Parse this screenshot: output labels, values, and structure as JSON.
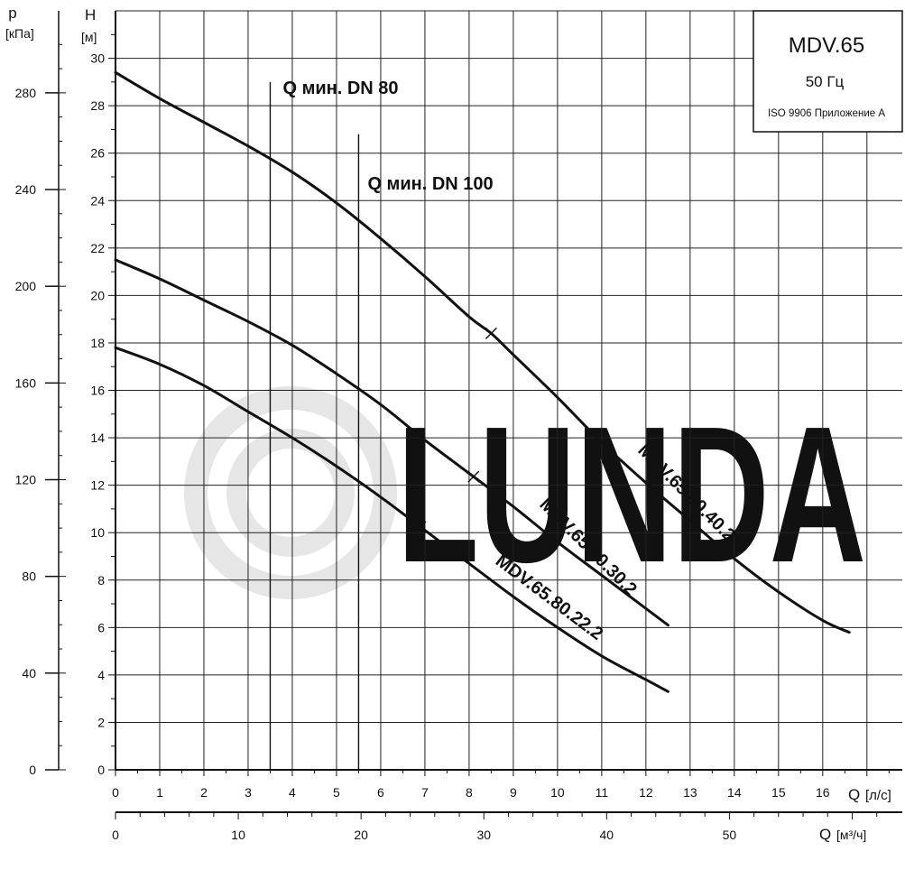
{
  "chart_data": {
    "type": "line",
    "title": "MDV.65",
    "subtitle": "50 Гц",
    "note": "ISO 9906 Приложение A",
    "x": {
      "label": "Q",
      "unit": "[л/с]",
      "range": [
        0,
        17.8
      ],
      "ticks": [
        "0",
        "1",
        "2",
        "3",
        "4",
        "5",
        "6",
        "7",
        "8",
        "9",
        "10",
        "11",
        "12",
        "13",
        "14",
        "15",
        "16"
      ]
    },
    "x2": {
      "label": "Q",
      "unit": "[м³/ч]",
      "ticks": [
        "0",
        "10",
        "20",
        "30",
        "40",
        "50"
      ],
      "tick_values": [
        0,
        10,
        20,
        30,
        40,
        50
      ]
    },
    "y": {
      "label": "H",
      "unit": "[м]",
      "range": [
        0,
        32
      ],
      "ticks": [
        "0",
        "2",
        "4",
        "6",
        "8",
        "10",
        "12",
        "14",
        "16",
        "18",
        "20",
        "22",
        "24",
        "26",
        "28",
        "30"
      ]
    },
    "y2": {
      "label": "p",
      "unit": "[кПа]",
      "ticks": [
        "0",
        "40",
        "80",
        "120",
        "160",
        "200",
        "240",
        "280"
      ],
      "tick_values": [
        0,
        40,
        80,
        120,
        160,
        200,
        240,
        280
      ]
    },
    "grid": true,
    "series": [
      {
        "name": "MDV.65.80.40.2",
        "x": [
          0,
          1,
          2,
          3,
          4,
          5,
          6,
          7,
          8,
          8.5,
          9,
          10,
          11,
          12,
          13,
          14,
          15,
          16,
          16.6
        ],
        "y": [
          29.4,
          28.3,
          27.3,
          26.3,
          25.2,
          23.9,
          22.4,
          20.8,
          19.1,
          18.4,
          17.5,
          15.7,
          13.8,
          12.1,
          10.5,
          8.9,
          7.5,
          6.3,
          5.8
        ],
        "marker_x": 8.5
      },
      {
        "name": "MDV.65.80.30.2",
        "x": [
          0,
          1,
          2,
          3,
          4,
          5,
          6,
          7,
          8,
          9,
          10,
          11,
          12,
          12.5
        ],
        "y": [
          21.5,
          20.7,
          19.8,
          18.9,
          17.9,
          16.7,
          15.4,
          13.9,
          12.5,
          11.1,
          9.6,
          8.2,
          6.8,
          6.1
        ],
        "marker_x": 8.1
      },
      {
        "name": "MDV.65.80.22.2",
        "x": [
          0,
          1,
          2,
          3,
          4,
          5,
          6,
          7,
          8,
          9,
          10,
          11,
          12,
          12.5
        ],
        "y": [
          17.8,
          17.1,
          16.2,
          15.1,
          14.0,
          12.8,
          11.5,
          10.1,
          8.7,
          7.3,
          6.0,
          4.8,
          3.8,
          3.3
        ],
        "marker_x": 6.9
      }
    ],
    "vlines": [
      {
        "label": "Q мин. DN 80",
        "x": 3.5,
        "top_y": 29.0
      },
      {
        "label": "Q мин. DN 100",
        "x": 5.5,
        "top_y": 26.8
      }
    ],
    "watermark": "LUNDA"
  }
}
